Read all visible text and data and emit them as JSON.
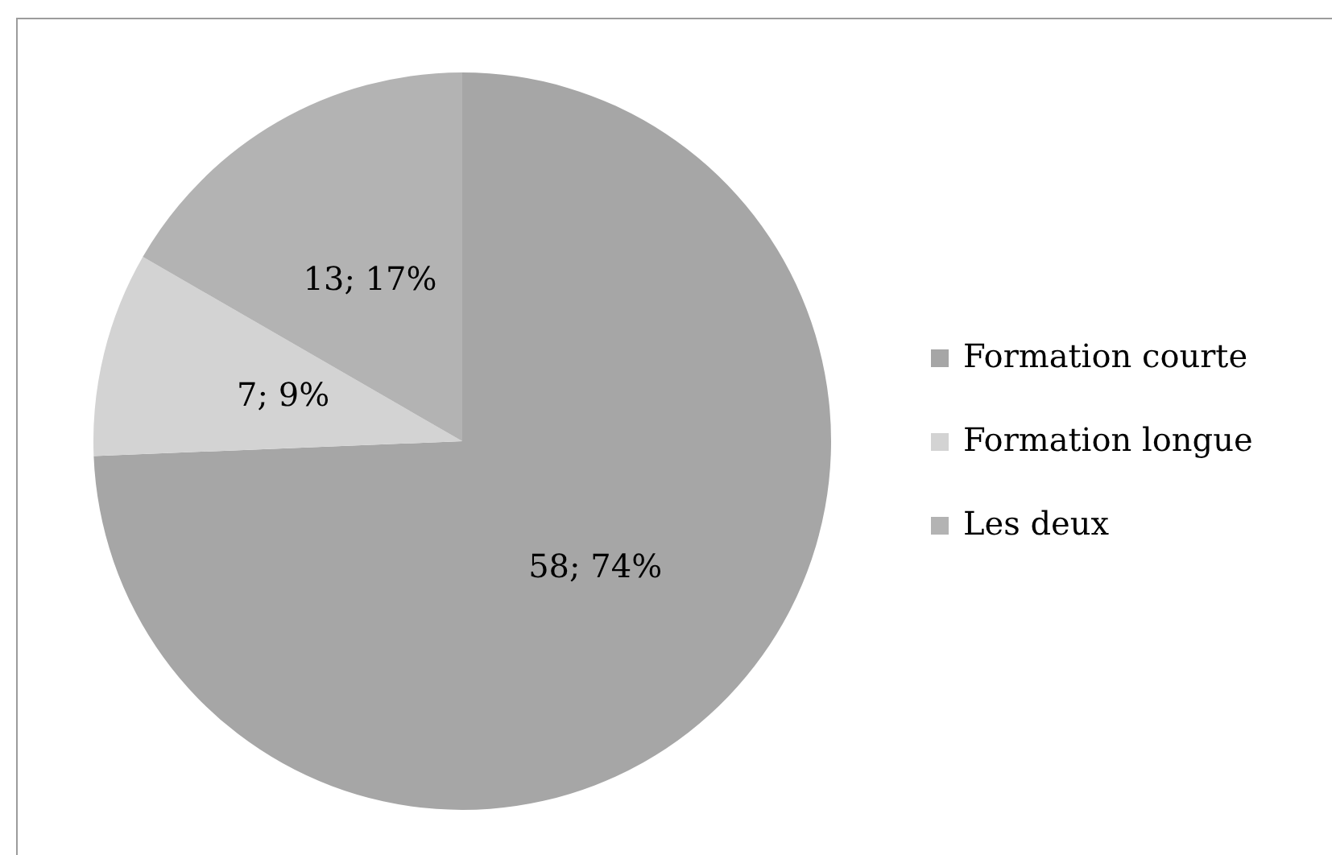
{
  "chart_data": {
    "type": "pie",
    "categories": [
      "Formation courte",
      "Formation longue",
      "Les deux"
    ],
    "values": [
      58,
      7,
      13
    ],
    "colors": [
      "#a6a6a6",
      "#d3d3d3",
      "#b3b3b3"
    ],
    "value_labels": [
      "58; 74%",
      "7; 9%",
      "13; 17%"
    ],
    "legend": "right"
  }
}
